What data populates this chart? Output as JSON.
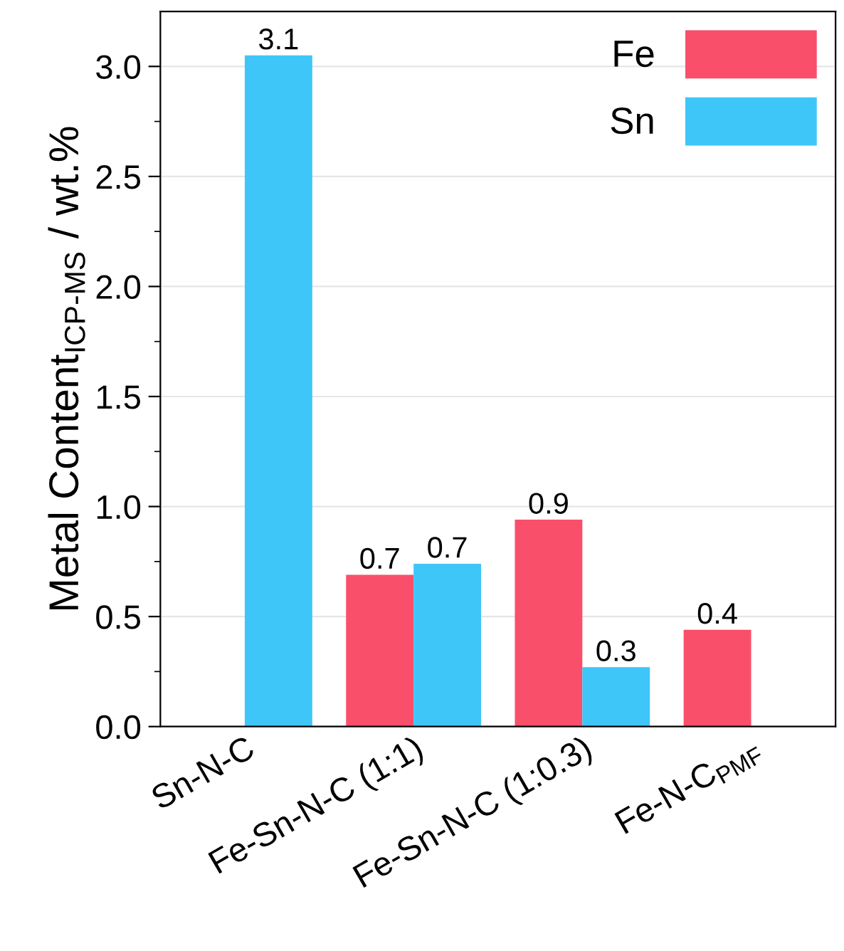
{
  "chart_data": {
    "type": "bar",
    "ylabel": "Metal Content$_{ICP-MS}$ / wt.%",
    "categories": [
      "Sn-N-C",
      "Fe-Sn-N-C (1:1)",
      "Fe-Sn-N-C (1:0.3)",
      "Fe-N-C$_{PMF}$"
    ],
    "series": [
      {
        "name": "Fe",
        "color": "#f94f6b",
        "values": [
          null,
          0.69,
          0.94,
          0.44
        ],
        "value_labels": [
          null,
          "0.7",
          "0.9",
          "0.4"
        ]
      },
      {
        "name": "Sn",
        "color": "#3ec6f9",
        "values": [
          3.05,
          0.74,
          0.27,
          null
        ],
        "value_labels": [
          "3.1",
          "0.7",
          "0.3",
          null
        ]
      }
    ],
    "ylim": [
      0,
      3.25
    ],
    "yticks": [
      "0.0",
      0.5,
      "1.0",
      1.5,
      "2.0",
      2.5,
      "3.0"
    ],
    "grid": "y",
    "legend": "top right"
  }
}
